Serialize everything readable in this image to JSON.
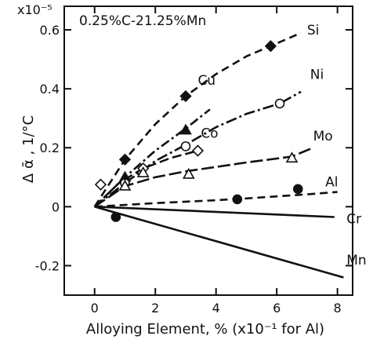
{
  "chart_data": {
    "type": "line",
    "title": "0.25%C-21.25%Mn",
    "xlabel": "Alloying Element, % (x10⁻¹ for Al)",
    "ylabel": "Δ ᾱ , 1/°C",
    "y_multiplier": "x10⁻⁵",
    "xlim": [
      -1,
      8.5
    ],
    "ylim": [
      -0.3,
      0.68
    ],
    "x_ticks": [
      "0",
      "2",
      "4",
      "6",
      "8"
    ],
    "y_ticks": [
      "-0.2",
      "0",
      "0.2",
      "0.4",
      "0.6"
    ],
    "grid": false,
    "series": [
      {
        "name": "Si",
        "marker": "filled-diamond",
        "dash": "10,6",
        "label_at": [
          7.0,
          0.6
        ],
        "points": [
          [
            0,
            0
          ],
          [
            1,
            0.16
          ],
          [
            3,
            0.375
          ],
          [
            5.8,
            0.545
          ]
        ],
        "curve": [
          [
            0,
            0
          ],
          [
            0.5,
            0.08
          ],
          [
            1,
            0.16
          ],
          [
            2,
            0.28
          ],
          [
            3,
            0.375
          ],
          [
            4,
            0.45
          ],
          [
            5,
            0.51
          ],
          [
            5.8,
            0.545
          ],
          [
            6.8,
            0.59
          ]
        ]
      },
      {
        "name": "Cu",
        "marker": "filled-triangle",
        "dash": "12,4,3,4",
        "label_at": [
          3.4,
          0.43
        ],
        "points": [
          [
            0,
            0
          ],
          [
            1,
            0.1
          ],
          [
            3,
            0.26
          ]
        ],
        "curve": [
          [
            0,
            0
          ],
          [
            1,
            0.1
          ],
          [
            2,
            0.19
          ],
          [
            3,
            0.265
          ],
          [
            3.8,
            0.33
          ]
        ]
      },
      {
        "name": "Ni",
        "marker": "open-circle",
        "dash": "14,4,3,4",
        "label_at": [
          7.1,
          0.45
        ],
        "points": [
          [
            0,
            0
          ],
          [
            1,
            0.08
          ],
          [
            3,
            0.205
          ],
          [
            6.1,
            0.35
          ]
        ],
        "curve": [
          [
            0,
            0
          ],
          [
            1,
            0.08
          ],
          [
            2,
            0.155
          ],
          [
            3,
            0.21
          ],
          [
            4,
            0.27
          ],
          [
            5,
            0.315
          ],
          [
            6.1,
            0.35
          ],
          [
            6.8,
            0.39
          ]
        ]
      },
      {
        "name": "Co",
        "marker": "open-diamond",
        "dash": "12,5",
        "label_at": [
          3.5,
          0.25
        ],
        "points": [
          [
            0,
            0
          ],
          [
            0.2,
            0.075
          ],
          [
            1.6,
            0.13
          ],
          [
            3.4,
            0.19
          ]
        ],
        "curve": [
          [
            0,
            0
          ],
          [
            0.8,
            0.08
          ],
          [
            1.6,
            0.13
          ],
          [
            2.5,
            0.165
          ],
          [
            3.4,
            0.19
          ]
        ]
      },
      {
        "name": "Mo",
        "marker": "open-triangle",
        "dash": "16,5",
        "label_at": [
          7.2,
          0.24
        ],
        "points": [
          [
            0,
            0
          ],
          [
            1,
            0.07
          ],
          [
            1.6,
            0.115
          ],
          [
            3.1,
            0.11
          ],
          [
            6.5,
            0.165
          ]
        ],
        "curve": [
          [
            0,
            0
          ],
          [
            1,
            0.07
          ],
          [
            2,
            0.1
          ],
          [
            3,
            0.12
          ],
          [
            4,
            0.135
          ],
          [
            5,
            0.15
          ],
          [
            6.5,
            0.17
          ],
          [
            7.2,
            0.2
          ]
        ]
      },
      {
        "name": "Al",
        "marker": "filled-circle",
        "dash": "10,6",
        "label_at": [
          7.6,
          0.085
        ],
        "points": [
          [
            0,
            0
          ],
          [
            4.7,
            0.025
          ],
          [
            6.7,
            0.06
          ]
        ],
        "curve": [
          [
            0,
            0
          ],
          [
            2,
            0.012
          ],
          [
            4,
            0.022
          ],
          [
            5,
            0.028
          ],
          [
            6,
            0.035
          ],
          [
            7,
            0.042
          ],
          [
            8,
            0.05
          ]
        ]
      },
      {
        "name": "Cr",
        "marker": "none",
        "dash": "",
        "label_at": [
          8.3,
          -0.04
        ],
        "points": [],
        "curve": [
          [
            0,
            0
          ],
          [
            7.9,
            -0.035
          ]
        ]
      },
      {
        "name": "Mn",
        "marker": "filled-circle",
        "dash": "",
        "label_at": [
          8.3,
          -0.18
        ],
        "points": [
          [
            0.7,
            -0.035
          ]
        ],
        "curve": [
          [
            0,
            0
          ],
          [
            8.2,
            -0.24
          ]
        ]
      }
    ]
  }
}
